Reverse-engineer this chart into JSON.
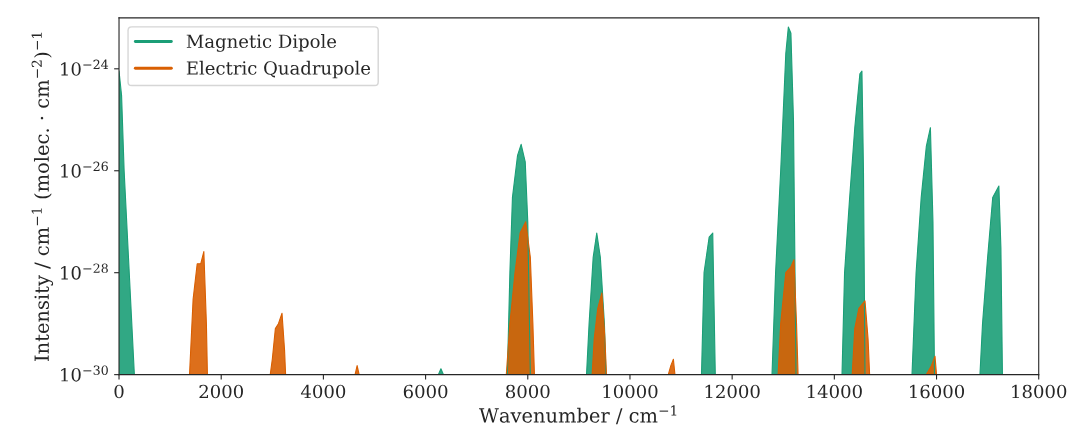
{
  "chart_data": {
    "type": "area",
    "xlabel": "Wavenumber / cm$^{−1}$",
    "ylabel": "Intensity / cm$^{−1}$ (molec. · cm$^{−2}$)$^{−1}$",
    "log": "y",
    "xlim": [
      0,
      18000
    ],
    "xticks": [
      0,
      2000,
      4000,
      6000,
      8000,
      10000,
      12000,
      14000,
      16000,
      18000
    ],
    "ylim": [
      1e-30,
      1e-23
    ],
    "yticks": [
      {
        "value": 1e-30,
        "label": "10$^{−30}$"
      },
      {
        "value": 1e-28,
        "label": "10$^{−28}$"
      },
      {
        "value": 1e-26,
        "label": "10$^{−26}$"
      },
      {
        "value": 1e-24,
        "label": "10$^{−24}$"
      }
    ],
    "grid": false,
    "legend": "top left",
    "series": [
      {
        "name": "Magnetic Dipole",
        "color": "#1b9e77",
        "x": [
          0,
          50,
          100,
          200,
          300,
          6250,
          6300,
          6350,
          7600,
          7650,
          7700,
          7800,
          7870,
          7950,
          8000,
          8050,
          9150,
          9200,
          9280,
          9350,
          9420,
          9500,
          9530,
          11400,
          11450,
          11550,
          11620,
          11670,
          12780,
          12850,
          12950,
          13050,
          13100,
          13150,
          13200,
          13250,
          14150,
          14200,
          14300,
          14400,
          14500,
          14540,
          14570,
          14600,
          15520,
          15600,
          15700,
          15800,
          15880,
          15930,
          15960,
          16850,
          16900,
          17000,
          17100,
          17220,
          17260,
          17290
        ],
        "values": [
          9e-25,
          3e-25,
          1e-26,
          1e-28,
          1e-30,
          1e-30,
          1.3e-30,
          1e-30,
          1e-30,
          1e-28,
          3e-27,
          2e-26,
          3.3e-26,
          1.5e-26,
          1e-27,
          1e-30,
          1e-30,
          1e-29,
          2e-28,
          6e-28,
          2e-28,
          1e-29,
          1e-30,
          1e-30,
          1e-28,
          5e-28,
          6e-28,
          1e-30,
          1e-30,
          1e-28,
          1e-26,
          2e-24,
          6.6e-24,
          5e-24,
          1e-25,
          1e-30,
          1e-30,
          1e-28,
          3e-27,
          7e-26,
          8e-25,
          9e-25,
          1e-26,
          1e-30,
          1e-30,
          1e-28,
          3e-27,
          3e-26,
          7e-26,
          1e-27,
          1e-30,
          1e-30,
          1e-29,
          2e-28,
          3e-27,
          5e-27,
          3e-28,
          1e-30
        ]
      },
      {
        "name": "Electric Quadrupole",
        "color": "#d95f02",
        "x": [
          1380,
          1450,
          1530,
          1600,
          1660,
          1710,
          1730,
          2960,
          3000,
          3060,
          3120,
          3190,
          3240,
          3260,
          4620,
          4660,
          4700,
          7580,
          7650,
          7750,
          7850,
          7960,
          8050,
          8100,
          8130,
          9260,
          9300,
          9370,
          9450,
          9510,
          9540,
          10750,
          10800,
          10850,
          10880,
          12900,
          12950,
          13050,
          13150,
          13210,
          13260,
          13290,
          14350,
          14400,
          14480,
          14600,
          14660,
          14690,
          15800,
          15900,
          15970,
          16000
        ],
        "values": [
          1e-30,
          3e-29,
          1.5e-28,
          1.5e-28,
          2.6e-28,
          1e-29,
          1e-30,
          1e-30,
          2e-30,
          8e-30,
          1e-29,
          1.6e-29,
          3e-30,
          1e-30,
          1e-30,
          1.5e-30,
          1e-30,
          1e-30,
          1e-29,
          1e-28,
          6e-28,
          1e-27,
          2e-28,
          1e-29,
          1e-30,
          1e-30,
          5e-30,
          2e-29,
          4e-29,
          5e-30,
          1e-30,
          1e-30,
          1.5e-30,
          2e-30,
          1e-30,
          1e-30,
          1e-29,
          1e-28,
          1.3e-28,
          1.8e-28,
          1e-29,
          1e-30,
          1e-30,
          8e-30,
          2e-29,
          2.8e-29,
          5e-30,
          1e-30,
          1e-30,
          1.5e-30,
          2.3e-30,
          1e-30
        ]
      }
    ]
  }
}
